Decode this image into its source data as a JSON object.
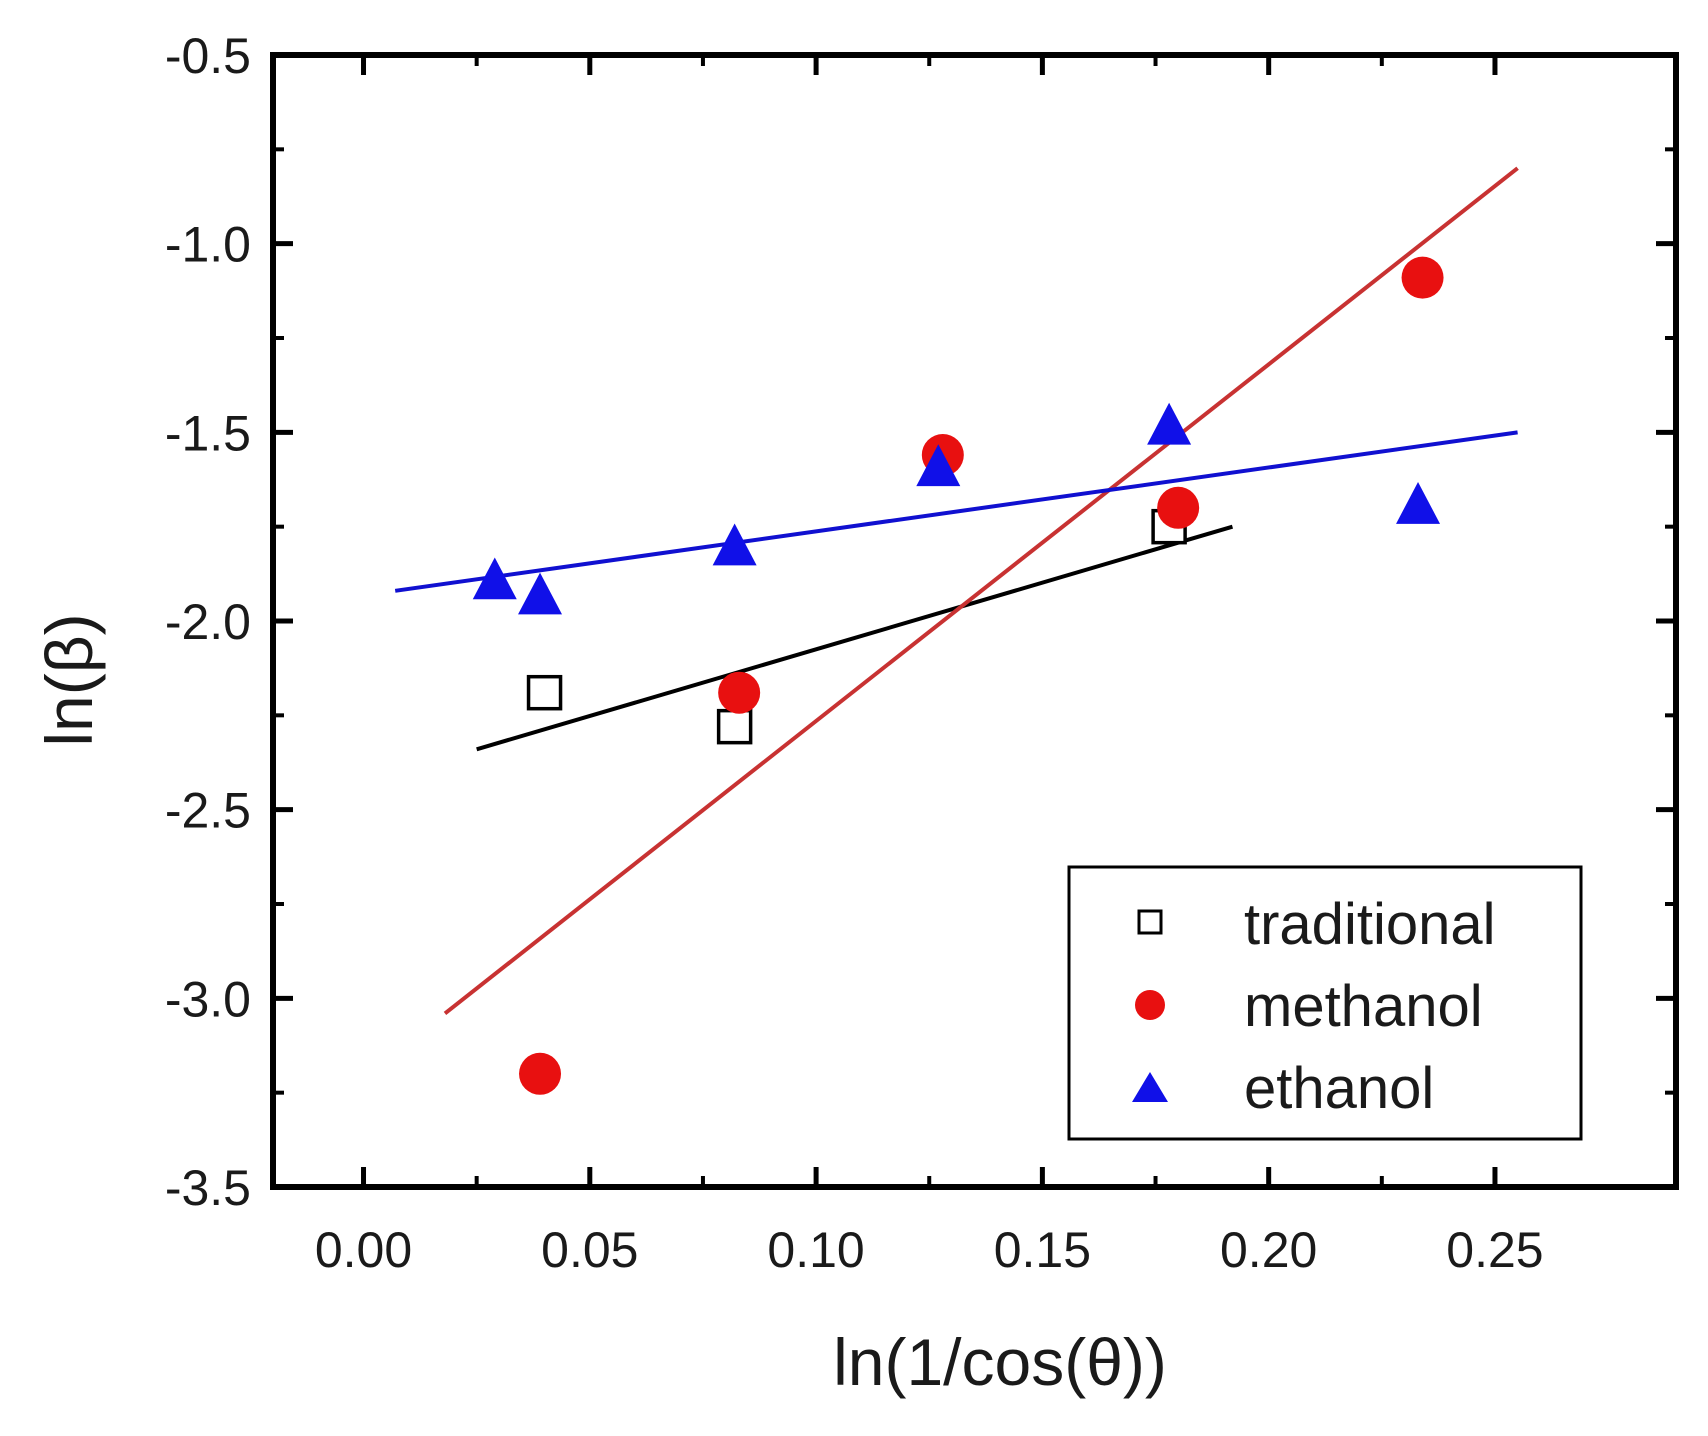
{
  "chart_data": {
    "type": "scatter",
    "title": "",
    "xlabel": "ln(1/cos(θ))",
    "ylabel": "ln(β)",
    "xlim": [
      -0.02,
      0.29
    ],
    "ylim": [
      -3.5,
      -0.5
    ],
    "xticks": [
      0.0,
      0.05,
      0.1,
      0.15,
      0.2,
      0.25
    ],
    "xtick_labels": [
      "0.00",
      "0.05",
      "0.10",
      "0.15",
      "0.20",
      "0.25"
    ],
    "yticks": [
      -0.5,
      -1.0,
      -1.5,
      -2.0,
      -2.5,
      -3.0,
      -3.5
    ],
    "ytick_labels": [
      "-0.5",
      "-1.0",
      "-1.5",
      "-2.0",
      "-2.5",
      "-3.0",
      "-3.5"
    ],
    "grid": false,
    "legend_position": "bottom-right",
    "series": [
      {
        "name": "traditional",
        "marker": "open-square",
        "color": "#000000",
        "x": [
          0.04,
          0.082,
          0.178
        ],
        "y": [
          -2.19,
          -2.28,
          -1.75
        ],
        "fit": {
          "x": [
            0.025,
            0.192
          ],
          "y": [
            -2.34,
            -1.75
          ],
          "color": "#000000"
        }
      },
      {
        "name": "methanol",
        "marker": "filled-circle",
        "color": "#e81010",
        "x": [
          0.039,
          0.083,
          0.128,
          0.18,
          0.234
        ],
        "y": [
          -3.2,
          -2.19,
          -1.56,
          -1.7,
          -1.09
        ],
        "fit": {
          "x": [
            0.018,
            0.255
          ],
          "y": [
            -3.04,
            -0.8
          ],
          "color": "#c83232"
        }
      },
      {
        "name": "ethanol",
        "marker": "filled-triangle",
        "color": "#1010e8",
        "x": [
          0.029,
          0.039,
          0.082,
          0.127,
          0.178,
          0.233
        ],
        "y": [
          -1.89,
          -1.93,
          -1.8,
          -1.59,
          -1.48,
          -1.69
        ],
        "fit": {
          "x": [
            0.007,
            0.255
          ],
          "y": [
            -1.92,
            -1.5
          ],
          "color": "#1010d0"
        }
      }
    ]
  }
}
